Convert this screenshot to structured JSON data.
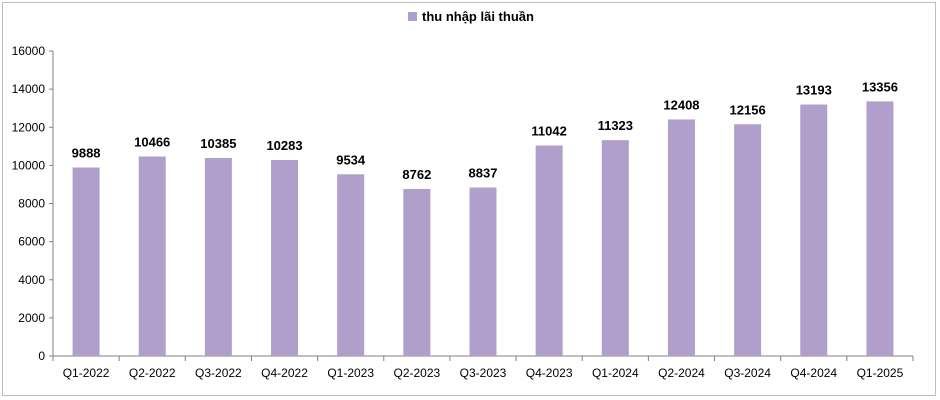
{
  "chart_data": {
    "type": "bar",
    "categories": [
      "Q1-2022",
      "Q2-2022",
      "Q3-2022",
      "Q4-2022",
      "Q1-2023",
      "Q2-2023",
      "Q3-2023",
      "Q4-2023",
      "Q1-2024",
      "Q2-2024",
      "Q3-2024",
      "Q4-2024",
      "Q1-2025"
    ],
    "series": [
      {
        "name": "thu nhập lãi thuần",
        "values": [
          9888,
          10466,
          10385,
          10283,
          9534,
          8762,
          8837,
          11042,
          11323,
          12408,
          12156,
          13193,
          13356
        ],
        "color": "#b09fca"
      }
    ],
    "ylim": [
      0,
      16000
    ],
    "yticks": [
      0,
      2000,
      4000,
      6000,
      8000,
      10000,
      12000,
      14000,
      16000
    ],
    "data_labels": true,
    "grid": false,
    "legend_position": "top-center",
    "title": "",
    "xlabel": "",
    "ylabel": ""
  }
}
